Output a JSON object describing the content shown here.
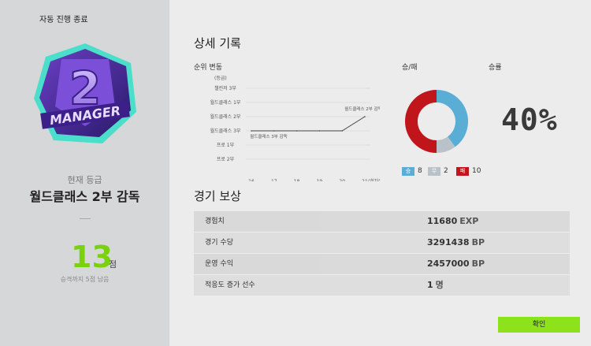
{
  "left_panel": {
    "auto_end_label": "자동 진행 종료",
    "badge_number": "2",
    "badge_text": "MANAGER",
    "grade_caption": "현재 등급",
    "grade_name": "월드클래스 2부 감독",
    "score_value": "13",
    "score_unit": "점",
    "promotion_note": "승격까지 5점 남음"
  },
  "detail_record": {
    "title": "상세 기록",
    "rank_change_label": "순위 변동",
    "win_loss_label": "승/패",
    "win_rate_label": "승률",
    "win_rate_value": "40%",
    "legend": [
      {
        "label": "승",
        "count": "8",
        "color": "#5aaed6"
      },
      {
        "label": "무",
        "count": "2",
        "color": "#b9c2c8"
      },
      {
        "label": "패",
        "count": "10",
        "color": "#c0151b"
      }
    ]
  },
  "chart_data": {
    "type": "line",
    "ylabel": "(등급)",
    "xlabel": "(회차)",
    "y_categories": [
      "챌린저 3부",
      "월드클래스 1부",
      "월드클래스 2부",
      "월드클래스 3부",
      "프로 1부",
      "프로 2부"
    ],
    "x": [
      16,
      17,
      18,
      19,
      20,
      21
    ],
    "x_tick_labels": [
      "16",
      "17",
      "18",
      "19",
      "20",
      "21"
    ],
    "series": [
      {
        "values": [
          "월드클래스 3부",
          "월드클래스 3부",
          "월드클래스 3부",
          "월드클래스 3부",
          "월드클래스 3부",
          "월드클래스 2부"
        ]
      }
    ],
    "annotations": [
      "월드클래스 3부 감독",
      "월드클래스 2부 감독"
    ],
    "grid": true
  },
  "rewards": {
    "title": "경기 보상",
    "rows": [
      {
        "label": "경험치",
        "value": "11680",
        "unit": "EXP"
      },
      {
        "label": "경기 수당",
        "value": "3291438",
        "unit": "BP"
      },
      {
        "label": "운영 수익",
        "value": "2457000",
        "unit": "BP"
      },
      {
        "label": "적응도 증가 선수",
        "value": "1",
        "unit": "명"
      }
    ]
  },
  "confirm_label": "확인"
}
